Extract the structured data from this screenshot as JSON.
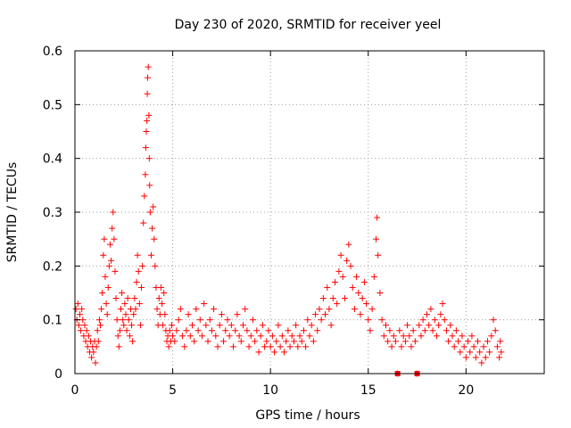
{
  "chart_data": {
    "type": "scatter",
    "title": "Day 230 of 2020, SRMTID for receiver yeel",
    "xlabel": "GPS time / hours",
    "ylabel": "SRMTID / TECUs",
    "xlim": [
      0,
      24
    ],
    "ylim": [
      0,
      0.6
    ],
    "xticks": [
      0,
      5,
      10,
      15,
      20
    ],
    "yticks": [
      0,
      0.1,
      0.2,
      0.3,
      0.4,
      0.5,
      0.6
    ],
    "xtick_labels": [
      "0",
      "5",
      "10",
      "15",
      "20"
    ],
    "ytick_labels": [
      "0",
      "0.1",
      "0.2",
      "0.3",
      "0.4",
      "0.5",
      "0.6"
    ],
    "grid": true,
    "marker": "plus",
    "color": "#ff0000",
    "series": [
      {
        "name": "SRMTID",
        "points": [
          [
            0.05,
            0.12
          ],
          [
            0.1,
            0.1
          ],
          [
            0.15,
            0.13
          ],
          [
            0.2,
            0.09
          ],
          [
            0.25,
            0.11
          ],
          [
            0.3,
            0.08
          ],
          [
            0.35,
            0.12
          ],
          [
            0.4,
            0.1
          ],
          [
            0.45,
            0.07
          ],
          [
            0.5,
            0.09
          ],
          [
            0.55,
            0.06
          ],
          [
            0.6,
            0.08
          ],
          [
            0.65,
            0.05
          ],
          [
            0.7,
            0.07
          ],
          [
            0.75,
            0.04
          ],
          [
            0.8,
            0.06
          ],
          [
            0.85,
            0.03
          ],
          [
            0.9,
            0.05
          ],
          [
            0.95,
            0.04
          ],
          [
            1.0,
            0.06
          ],
          [
            1.05,
            0.02
          ],
          [
            1.1,
            0.05
          ],
          [
            1.15,
            0.08
          ],
          [
            1.2,
            0.06
          ],
          [
            1.25,
            0.1
          ],
          [
            1.3,
            0.09
          ],
          [
            1.35,
            0.12
          ],
          [
            1.4,
            0.15
          ],
          [
            1.45,
            0.22
          ],
          [
            1.5,
            0.25
          ],
          [
            1.55,
            0.18
          ],
          [
            1.6,
            0.13
          ],
          [
            1.65,
            0.11
          ],
          [
            1.7,
            0.16
          ],
          [
            1.75,
            0.2
          ],
          [
            1.8,
            0.24
          ],
          [
            1.85,
            0.21
          ],
          [
            1.9,
            0.27
          ],
          [
            1.95,
            0.3
          ],
          [
            2.0,
            0.25
          ],
          [
            2.05,
            0.19
          ],
          [
            2.1,
            0.14
          ],
          [
            2.15,
            0.1
          ],
          [
            2.2,
            0.07
          ],
          [
            2.25,
            0.05
          ],
          [
            2.3,
            0.08
          ],
          [
            2.35,
            0.12
          ],
          [
            2.4,
            0.15
          ],
          [
            2.45,
            0.1
          ],
          [
            2.5,
            0.09
          ],
          [
            2.55,
            0.13
          ],
          [
            2.6,
            0.11
          ],
          [
            2.65,
            0.08
          ],
          [
            2.7,
            0.14
          ],
          [
            2.75,
            0.1
          ],
          [
            2.8,
            0.07
          ],
          [
            2.85,
            0.12
          ],
          [
            2.9,
            0.09
          ],
          [
            2.95,
            0.06
          ],
          [
            3.0,
            0.11
          ],
          [
            3.05,
            0.14
          ],
          [
            3.1,
            0.12
          ],
          [
            3.15,
            0.17
          ],
          [
            3.2,
            0.22
          ],
          [
            3.25,
            0.19
          ],
          [
            3.3,
            0.13
          ],
          [
            3.35,
            0.09
          ],
          [
            3.4,
            0.16
          ],
          [
            3.45,
            0.2
          ],
          [
            3.5,
            0.28
          ],
          [
            3.55,
            0.33
          ],
          [
            3.6,
            0.37
          ],
          [
            3.62,
            0.42
          ],
          [
            3.65,
            0.45
          ],
          [
            3.68,
            0.47
          ],
          [
            3.7,
            0.52
          ],
          [
            3.72,
            0.55
          ],
          [
            3.75,
            0.57
          ],
          [
            3.78,
            0.48
          ],
          [
            3.8,
            0.4
          ],
          [
            3.82,
            0.35
          ],
          [
            3.85,
            0.3
          ],
          [
            3.9,
            0.22
          ],
          [
            3.95,
            0.27
          ],
          [
            4.0,
            0.31
          ],
          [
            4.05,
            0.25
          ],
          [
            4.1,
            0.2
          ],
          [
            4.15,
            0.16
          ],
          [
            4.2,
            0.12
          ],
          [
            4.25,
            0.09
          ],
          [
            4.3,
            0.14
          ],
          [
            4.35,
            0.11
          ],
          [
            4.4,
            0.16
          ],
          [
            4.45,
            0.13
          ],
          [
            4.5,
            0.09
          ],
          [
            4.55,
            0.15
          ],
          [
            4.6,
            0.11
          ],
          [
            4.65,
            0.08
          ],
          [
            4.7,
            0.06
          ],
          [
            4.75,
            0.07
          ],
          [
            4.8,
            0.05
          ],
          [
            4.85,
            0.08
          ],
          [
            4.9,
            0.06
          ],
          [
            4.95,
            0.09
          ],
          [
            5.0,
            0.07
          ],
          [
            5.1,
            0.06
          ],
          [
            5.2,
            0.08
          ],
          [
            5.3,
            0.1
          ],
          [
            5.4,
            0.12
          ],
          [
            5.5,
            0.07
          ],
          [
            5.6,
            0.05
          ],
          [
            5.7,
            0.08
          ],
          [
            5.8,
            0.11
          ],
          [
            5.9,
            0.07
          ],
          [
            6.0,
            0.09
          ],
          [
            6.1,
            0.06
          ],
          [
            6.2,
            0.12
          ],
          [
            6.3,
            0.08
          ],
          [
            6.4,
            0.1
          ],
          [
            6.5,
            0.07
          ],
          [
            6.6,
            0.13
          ],
          [
            6.7,
            0.09
          ],
          [
            6.8,
            0.06
          ],
          [
            6.9,
            0.1
          ],
          [
            7.0,
            0.08
          ],
          [
            7.1,
            0.12
          ],
          [
            7.2,
            0.07
          ],
          [
            7.3,
            0.05
          ],
          [
            7.4,
            0.09
          ],
          [
            7.5,
            0.11
          ],
          [
            7.6,
            0.06
          ],
          [
            7.7,
            0.08
          ],
          [
            7.8,
            0.1
          ],
          [
            7.9,
            0.07
          ],
          [
            8.0,
            0.09
          ],
          [
            8.1,
            0.05
          ],
          [
            8.2,
            0.08
          ],
          [
            8.3,
            0.11
          ],
          [
            8.4,
            0.07
          ],
          [
            8.5,
            0.06
          ],
          [
            8.6,
            0.09
          ],
          [
            8.7,
            0.12
          ],
          [
            8.8,
            0.08
          ],
          [
            8.9,
            0.05
          ],
          [
            9.0,
            0.07
          ],
          [
            9.1,
            0.1
          ],
          [
            9.2,
            0.06
          ],
          [
            9.3,
            0.08
          ],
          [
            9.4,
            0.04
          ],
          [
            9.5,
            0.07
          ],
          [
            9.6,
            0.09
          ],
          [
            9.7,
            0.05
          ],
          [
            9.8,
            0.06
          ],
          [
            9.9,
            0.08
          ],
          [
            10.0,
            0.05
          ],
          [
            10.1,
            0.07
          ],
          [
            10.2,
            0.04
          ],
          [
            10.3,
            0.06
          ],
          [
            10.4,
            0.09
          ],
          [
            10.5,
            0.05
          ],
          [
            10.6,
            0.07
          ],
          [
            10.7,
            0.04
          ],
          [
            10.8,
            0.06
          ],
          [
            10.9,
            0.08
          ],
          [
            11.0,
            0.05
          ],
          [
            11.1,
            0.07
          ],
          [
            11.2,
            0.06
          ],
          [
            11.3,
            0.09
          ],
          [
            11.4,
            0.05
          ],
          [
            11.5,
            0.07
          ],
          [
            11.6,
            0.06
          ],
          [
            11.7,
            0.08
          ],
          [
            11.8,
            0.05
          ],
          [
            11.9,
            0.1
          ],
          [
            12.0,
            0.07
          ],
          [
            12.1,
            0.09
          ],
          [
            12.2,
            0.06
          ],
          [
            12.3,
            0.11
          ],
          [
            12.4,
            0.08
          ],
          [
            12.5,
            0.12
          ],
          [
            12.6,
            0.1
          ],
          [
            12.7,
            0.14
          ],
          [
            12.8,
            0.11
          ],
          [
            12.9,
            0.16
          ],
          [
            13.0,
            0.12
          ],
          [
            13.1,
            0.09
          ],
          [
            13.2,
            0.14
          ],
          [
            13.3,
            0.17
          ],
          [
            13.4,
            0.13
          ],
          [
            13.5,
            0.19
          ],
          [
            13.6,
            0.22
          ],
          [
            13.7,
            0.18
          ],
          [
            13.8,
            0.14
          ],
          [
            13.9,
            0.21
          ],
          [
            14.0,
            0.24
          ],
          [
            14.1,
            0.2
          ],
          [
            14.2,
            0.16
          ],
          [
            14.3,
            0.12
          ],
          [
            14.4,
            0.18
          ],
          [
            14.5,
            0.15
          ],
          [
            14.6,
            0.11
          ],
          [
            14.7,
            0.14
          ],
          [
            14.8,
            0.17
          ],
          [
            14.9,
            0.13
          ],
          [
            15.0,
            0.1
          ],
          [
            15.1,
            0.08
          ],
          [
            15.2,
            0.12
          ],
          [
            15.3,
            0.18
          ],
          [
            15.4,
            0.25
          ],
          [
            15.45,
            0.29
          ],
          [
            15.5,
            0.22
          ],
          [
            15.6,
            0.15
          ],
          [
            15.7,
            0.1
          ],
          [
            15.8,
            0.07
          ],
          [
            15.9,
            0.09
          ],
          [
            16.0,
            0.06
          ],
          [
            16.1,
            0.08
          ],
          [
            16.2,
            0.05
          ],
          [
            16.3,
            0.07
          ],
          [
            16.4,
            0.06
          ],
          [
            16.5,
            0.0
          ],
          [
            16.6,
            0.08
          ],
          [
            16.7,
            0.05
          ],
          [
            16.8,
            0.07
          ],
          [
            16.9,
            0.06
          ],
          [
            17.0,
            0.09
          ],
          [
            17.1,
            0.07
          ],
          [
            17.2,
            0.05
          ],
          [
            17.3,
            0.08
          ],
          [
            17.4,
            0.06
          ],
          [
            17.5,
            0.0
          ],
          [
            17.6,
            0.09
          ],
          [
            17.7,
            0.07
          ],
          [
            17.8,
            0.1
          ],
          [
            17.9,
            0.08
          ],
          [
            18.0,
            0.11
          ],
          [
            18.1,
            0.09
          ],
          [
            18.2,
            0.12
          ],
          [
            18.3,
            0.08
          ],
          [
            18.4,
            0.1
          ],
          [
            18.5,
            0.07
          ],
          [
            18.6,
            0.09
          ],
          [
            18.7,
            0.11
          ],
          [
            18.8,
            0.13
          ],
          [
            18.9,
            0.1
          ],
          [
            19.0,
            0.08
          ],
          [
            19.1,
            0.06
          ],
          [
            19.2,
            0.09
          ],
          [
            19.3,
            0.07
          ],
          [
            19.4,
            0.05
          ],
          [
            19.5,
            0.08
          ],
          [
            19.6,
            0.06
          ],
          [
            19.7,
            0.04
          ],
          [
            19.8,
            0.07
          ],
          [
            19.9,
            0.05
          ],
          [
            20.0,
            0.03
          ],
          [
            20.1,
            0.06
          ],
          [
            20.2,
            0.04
          ],
          [
            20.3,
            0.07
          ],
          [
            20.4,
            0.05
          ],
          [
            20.5,
            0.03
          ],
          [
            20.6,
            0.06
          ],
          [
            20.7,
            0.04
          ],
          [
            20.8,
            0.02
          ],
          [
            20.9,
            0.05
          ],
          [
            21.0,
            0.03
          ],
          [
            21.1,
            0.06
          ],
          [
            21.2,
            0.04
          ],
          [
            21.3,
            0.07
          ],
          [
            21.4,
            0.1
          ],
          [
            21.5,
            0.08
          ],
          [
            21.6,
            0.05
          ],
          [
            21.7,
            0.03
          ],
          [
            21.75,
            0.06
          ],
          [
            21.8,
            0.04
          ]
        ]
      }
    ],
    "gaps": [
      [
        16.5,
        0.0
      ],
      [
        17.5,
        0.0
      ]
    ]
  }
}
